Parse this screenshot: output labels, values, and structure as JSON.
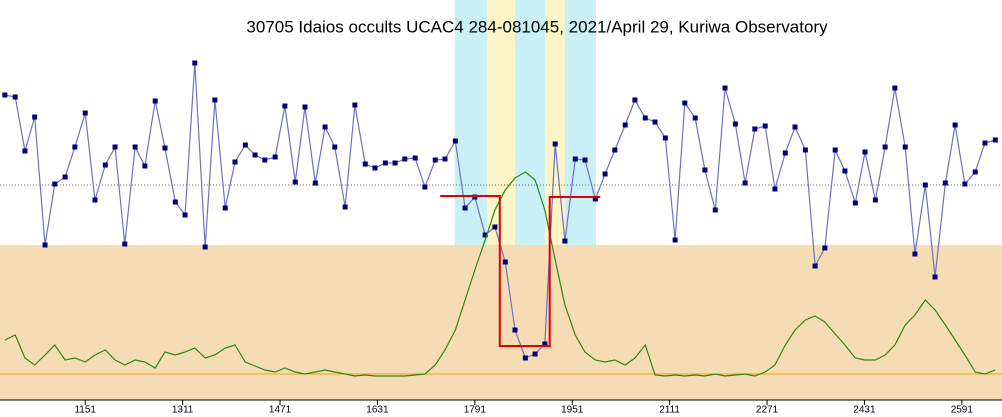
{
  "chart_data": {
    "type": "line",
    "title": "30705 Idaios occults UCAC4 284-081045, 2021/April 29, Kuriwa Observatory",
    "x": [
      1019,
      1036,
      1052,
      1068,
      1085,
      1101,
      1118,
      1134,
      1151,
      1167,
      1184,
      1200,
      1216,
      1233,
      1249,
      1266,
      1282,
      1299,
      1315,
      1331,
      1348,
      1364,
      1381,
      1397,
      1414,
      1430,
      1446,
      1463,
      1479,
      1496,
      1512,
      1529,
      1545,
      1561,
      1578,
      1594,
      1611,
      1627,
      1644,
      1660,
      1676,
      1693,
      1709,
      1726,
      1742,
      1759,
      1775,
      1791,
      1808,
      1824,
      1841,
      1857,
      1874,
      1890,
      1906,
      1923,
      1939,
      1956,
      1972,
      1989,
      2005,
      2021,
      2038,
      2054,
      2071,
      2087,
      2104,
      2120,
      2136,
      2153,
      2169,
      2186,
      2202,
      2219,
      2235,
      2251,
      2268,
      2284,
      2301,
      2317,
      2334,
      2350,
      2366,
      2383,
      2399,
      2416,
      2432,
      2449,
      2465,
      2481,
      2498,
      2514,
      2531,
      2547,
      2564,
      2580,
      2596,
      2613,
      2629,
      2646
    ],
    "series": [
      {
        "color": "#7070c0",
        "marker_color": "#00007a",
        "markers": true,
        "values": [
          305,
          303,
          249,
          283,
          155,
          216,
          223,
          253,
          287,
          200,
          235,
          253,
          156,
          253,
          234,
          299,
          252,
          198,
          185,
          337,
          153,
          300,
          192,
          238,
          255,
          245,
          240,
          243,
          294,
          218,
          293,
          217,
          273,
          253,
          193,
          295,
          236,
          232,
          237,
          237,
          241,
          242,
          213,
          240,
          241,
          259,
          192,
          203,
          165,
          173,
          138,
          70,
          42,
          46,
          56,
          256,
          159,
          241,
          240,
          201,
          226,
          250,
          275,
          300,
          282,
          278,
          262,
          160,
          297,
          282,
          230,
          190,
          312,
          276,
          217,
          271,
          274,
          211,
          247,
          273,
          250,
          134,
          152,
          250,
          229,
          197,
          248,
          200,
          253,
          312,
          253,
          146,
          215,
          123,
          217,
          275,
          216,
          228,
          257,
          260
        ]
      },
      {
        "color": "#2a8a10",
        "markers": false,
        "values": [
          60,
          65,
          42,
          35,
          45,
          55,
          40,
          42,
          38,
          45,
          50,
          40,
          35,
          40,
          38,
          32,
          48,
          45,
          48,
          52,
          42,
          45,
          52,
          55,
          38,
          34,
          30,
          28,
          32,
          28,
          26,
          28,
          30,
          28,
          26,
          24,
          25,
          24,
          24,
          24,
          24,
          25,
          26,
          35,
          50,
          70,
          100,
          130,
          160,
          190,
          210,
          222,
          228,
          220,
          190,
          140,
          95,
          65,
          48,
          40,
          38,
          40,
          35,
          42,
          55,
          25,
          24,
          25,
          24,
          25,
          24,
          26,
          24,
          25,
          26,
          24,
          28,
          35,
          55,
          70,
          80,
          84,
          78,
          66,
          55,
          42,
          40,
          40,
          45,
          55,
          75,
          85,
          100,
          90,
          75,
          60,
          45,
          28,
          26,
          30
        ]
      },
      {
        "color": "#e00000",
        "markers": false,
        "x": [
          1734,
          1832,
          1832,
          1914,
          1914,
          1997
        ],
        "values": [
          204,
          204,
          54,
          54,
          203,
          203
        ]
      }
    ],
    "hlines": [
      {
        "value": 215,
        "color": "#666666"
      },
      {
        "value": 26,
        "color": "#f0a020"
      }
    ],
    "bands": [
      {
        "x": [
          1758,
          1990
        ],
        "color": "#c8f0f6"
      },
      {
        "x": [
          1811,
          1857
        ],
        "color": "#fbf5c8"
      },
      {
        "x": [
          1906,
          1939
        ],
        "color": "#fbf5c8"
      }
    ],
    "xlim": [
      1011,
      2657
    ],
    "ylim": [
      0,
      400
    ],
    "xticks": [
      1151,
      1311,
      1471,
      1631,
      1791,
      1951,
      2111,
      2271,
      2431,
      2591
    ]
  }
}
